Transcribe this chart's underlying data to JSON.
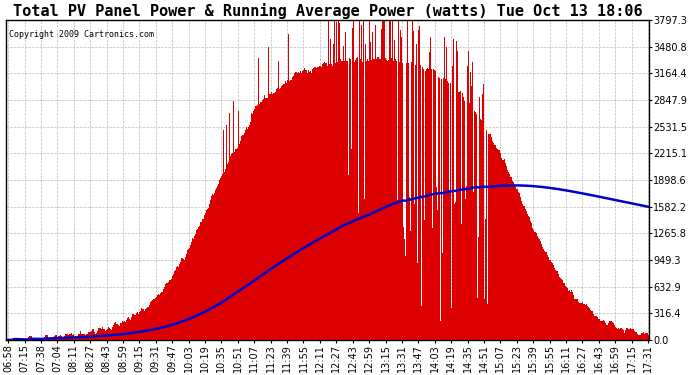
{
  "title": "Total PV Panel Power & Running Average Power (watts) Tue Oct 13 18:06",
  "copyright": "Copyright 2009 Cartronics.com",
  "background_color": "#ffffff",
  "plot_bg_color": "#ffffff",
  "grid_color": "#aaaaaa",
  "ytick_labels": [
    "0.0",
    "316.4",
    "632.9",
    "949.3",
    "1265.8",
    "1582.2",
    "1898.6",
    "2215.1",
    "2531.5",
    "2847.9",
    "3164.4",
    "3480.8",
    "3797.3"
  ],
  "ymax": 3797.3,
  "ymin": 0.0,
  "xtick_labels": [
    "06:58",
    "07:15",
    "07:38",
    "07:04",
    "08:11",
    "08:27",
    "08:43",
    "08:59",
    "09:15",
    "09:31",
    "09:47",
    "10:03",
    "10:19",
    "10:35",
    "10:51",
    "11:07",
    "11:23",
    "11:39",
    "11:55",
    "12:11",
    "12:27",
    "12:43",
    "12:59",
    "13:15",
    "13:31",
    "13:47",
    "14:03",
    "14:19",
    "14:35",
    "14:51",
    "15:07",
    "15:23",
    "15:39",
    "15:55",
    "16:11",
    "16:27",
    "16:43",
    "16:59",
    "17:15",
    "17:31"
  ],
  "bar_color": "#dd0000",
  "line_color": "#0000cc",
  "title_fontsize": 11,
  "tick_fontsize": 7,
  "copyright_fontsize": 6
}
